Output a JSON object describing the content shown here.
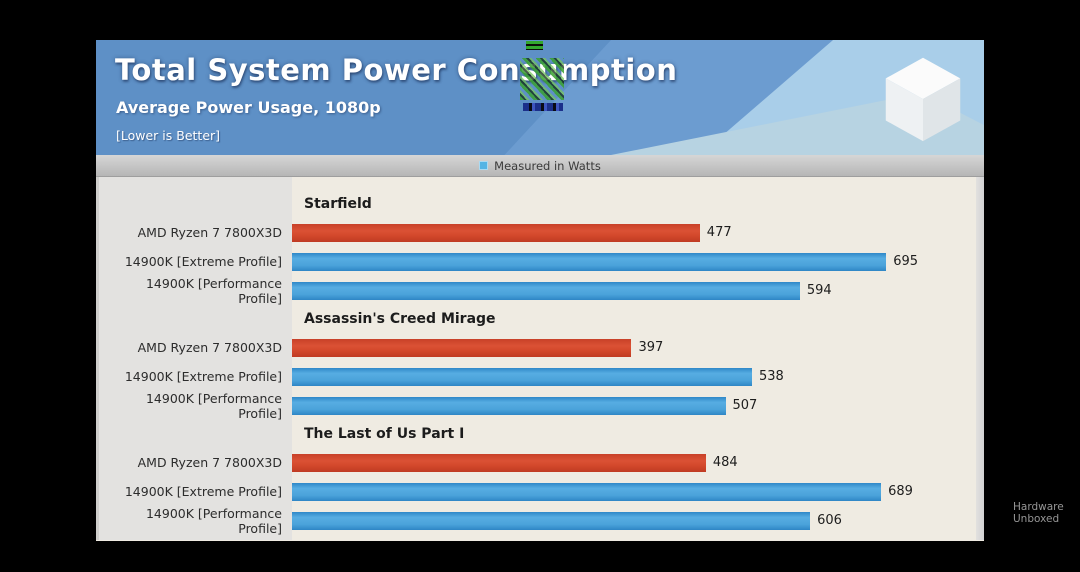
{
  "header": {
    "title": "Total System Power Consumption",
    "subtitle": "Average Power Usage, 1080p",
    "note": "[Lower is Better]"
  },
  "legend": {
    "label": "Measured in Watts",
    "swatch_color": "#54b4e4"
  },
  "watermark": {
    "line1": "Hardware",
    "line2": "Unboxed"
  },
  "colors": {
    "header_blue": "#5e90c6",
    "header_light_blue": "#a9cee9",
    "red_bar": "#d4492c",
    "blue_bar": "#4aa2da",
    "chart_bg": "#efebe2",
    "gutter_bg": "#e3e2e0"
  },
  "chart_data": {
    "type": "bar",
    "orientation": "horizontal",
    "title": "Total System Power Consumption",
    "subtitle": "Average Power Usage, 1080p",
    "note": "Lower is Better",
    "unit": "Watts",
    "legend": [
      "Measured in Watts"
    ],
    "xlim": [
      0,
      800
    ],
    "grid": false,
    "categories": [
      "AMD Ryzen 7 7800X3D",
      "14900K [Extreme Profile]",
      "14900K [Performance Profile]"
    ],
    "bar_colors": [
      "red",
      "blue",
      "blue"
    ],
    "groups": [
      {
        "title": "Starfield",
        "values": [
          477,
          695,
          594
        ]
      },
      {
        "title": "Assassin's Creed Mirage",
        "values": [
          397,
          538,
          507
        ]
      },
      {
        "title": "The Last of Us Part I",
        "values": [
          484,
          689,
          606
        ]
      }
    ]
  }
}
